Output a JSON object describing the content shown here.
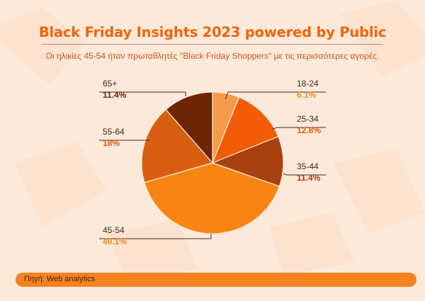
{
  "title": "Black Friday Insights 2023 powered by Public",
  "subtitle": "Οι ηλικίες 45-54 ήταν πρωταθλητές \"Black Friday Shoppers\" με τις περισσότερες αγορές.",
  "source": "Πηγή: Web analytics",
  "colors": {
    "background": "#fde9d9",
    "title": "#f0650b",
    "footer": "#f58220"
  },
  "chart_data": {
    "type": "pie",
    "slices": [
      {
        "label": "18-24",
        "value": 6.1,
        "value_label": "6.1%",
        "color": "#f79a4a",
        "value_color": "#f08a3a"
      },
      {
        "label": "25-34",
        "value": 12.8,
        "value_label": "12.8%",
        "color": "#f25c05",
        "value_color": "#e85a08"
      },
      {
        "label": "35-44",
        "value": 11.4,
        "value_label": "11.4%",
        "color": "#a8400f",
        "value_color": "#a33c10"
      },
      {
        "label": "45-54",
        "value": 40.1,
        "value_label": "40.1%",
        "color": "#f88512",
        "value_color": "#f28a1c"
      },
      {
        "label": "55-64",
        "value": 18,
        "value_label": "18%",
        "color": "#d95f10",
        "value_color": "#d45c10"
      },
      {
        "label": "65+",
        "value": 11.4,
        "value_label": "11.4%",
        "color": "#6e2506",
        "value_color": "#6a2408"
      }
    ]
  }
}
